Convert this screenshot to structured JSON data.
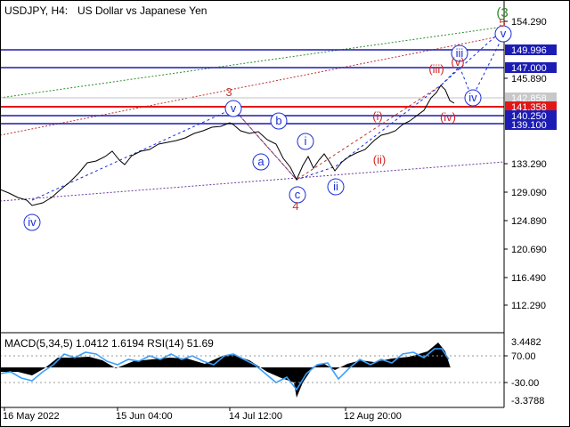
{
  "header": {
    "symbol_timeframe": "USDJPY, H4:",
    "description": "US Dollar vs Japanese Yen"
  },
  "colors": {
    "background": "#ffffff",
    "candles": "#000000",
    "hline_blue": "#1c1cb4",
    "hline_red": "#e01818",
    "price_tag_blue": "#1c1cb4",
    "price_tag_red": "#e01818",
    "current_price_line": "#c0c0c0",
    "wave_blue": "#1a2fd6",
    "wave_red": "#d42222",
    "wave_brown": "#c0392b",
    "wave_green": "#2e8b2e",
    "channel_green": "#2e8b2e",
    "channel_purple": "#6a3a9a",
    "channel_red": "#c03030",
    "macd_histogram": "#000000",
    "rsi_line": "#3aa0ff"
  },
  "price_axis": {
    "ticks": [
      "154.290",
      "145.890",
      "133.290",
      "129.090",
      "124.890",
      "120.690",
      "116.490",
      "112.290"
    ],
    "tagged_levels": [
      {
        "text": "149.996",
        "kind": "blue"
      },
      {
        "text": "147.000",
        "kind": "blue"
      },
      {
        "text": "142.858",
        "kind": "current"
      },
      {
        "text": "141.358",
        "kind": "red"
      },
      {
        "text": "140.250",
        "kind": "blue"
      },
      {
        "text": "139.100",
        "kind": "blue"
      }
    ]
  },
  "indicator": {
    "label": "MACD(5,34,5) 1.0412 1.6194 RSI(14) 51.69",
    "ticks": [
      "3.4482",
      "70.00",
      "-30.00",
      "-3.3788"
    ]
  },
  "time_axis": [
    "16 May 2022",
    "15 Jun 04:00",
    "14 Jul 12:00",
    "12 Aug 20:00"
  ],
  "waves": {
    "circled_blue": [
      "iv",
      "v",
      "a",
      "b",
      "c",
      "i",
      "ii",
      "iii",
      "iv",
      "v"
    ],
    "red_roman": [
      "(i)",
      "(ii)",
      "(iii)",
      "(iv)",
      "(v)"
    ],
    "brown_numbers": [
      "3",
      "4",
      "5"
    ],
    "green_label": "(3"
  }
}
